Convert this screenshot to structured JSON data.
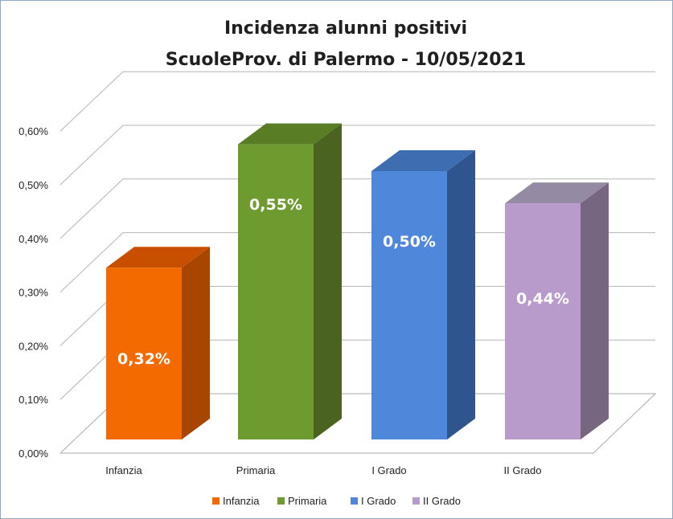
{
  "chart_data": {
    "type": "bar",
    "title": "Incidenza alunni positivi",
    "subtitle": "ScuoleProv. di Palermo - 10/05/2021",
    "categories": [
      "Infanzia",
      "Primaria",
      "I Grado",
      "II Grado"
    ],
    "values": [
      0.32,
      0.55,
      0.5,
      0.44
    ],
    "data_labels": [
      "0,32%",
      "0,55%",
      "0,50%",
      "0,44%"
    ],
    "colors": [
      "#f26a00",
      "#6e9b2f",
      "#4f87da",
      "#b89bcb"
    ],
    "side_colors": [
      "#a84500",
      "#4a6420",
      "#30548d",
      "#77667f"
    ],
    "top_colors": [
      "#c94f00",
      "#587d25",
      "#3f6db2",
      "#958aa3"
    ],
    "ylim": [
      0,
      0.6
    ],
    "yticks": [
      0,
      0.1,
      0.2,
      0.3,
      0.4,
      0.5,
      0.6
    ],
    "ytick_labels": [
      "0,00%",
      "0,10%",
      "0,20%",
      "0,30%",
      "0,40%",
      "0,50%",
      "0,60%"
    ],
    "legend": [
      "Infanzia",
      "Primaria",
      "I Grado",
      "II Grado"
    ],
    "legend_position": "bottom",
    "grid": true,
    "style": "3d-column"
  }
}
